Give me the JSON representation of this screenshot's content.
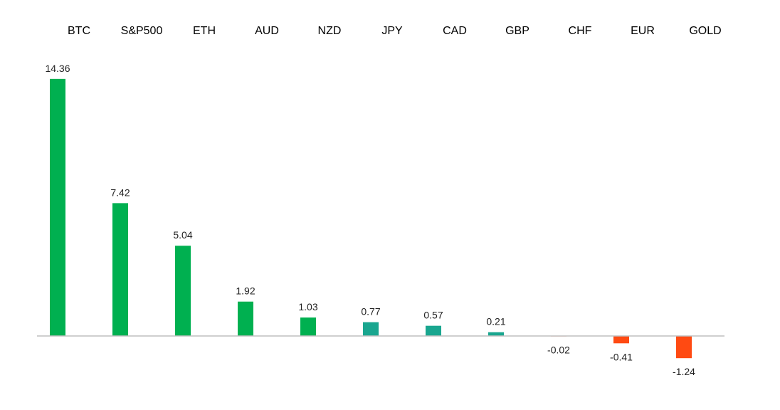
{
  "chart_data": {
    "type": "bar",
    "title": "",
    "xlabel": "",
    "ylabel": "",
    "categories": [
      "BTC",
      "S&P500",
      "ETH",
      "AUD",
      "NZD",
      "JPY",
      "CAD",
      "GBP",
      "CHF",
      "EUR",
      "GOLD"
    ],
    "values": [
      14.36,
      7.42,
      5.04,
      1.92,
      1.03,
      0.77,
      0.57,
      0.21,
      -0.02,
      -0.41,
      -1.24
    ],
    "value_labels": [
      "14.36",
      "7.42",
      "5.04",
      "1.92",
      "1.03",
      "0.77",
      "0.57",
      "0.21",
      "-0.02",
      "-0.41",
      "-1.24"
    ],
    "ylim": [
      -3.5,
      16
    ],
    "grid": false,
    "legend": "none",
    "category_label_position": "top",
    "colors": {
      "positive": "#00b050",
      "positive_small": "#19a68f",
      "negative": "#ff4a12",
      "axis": "#bfbfbf"
    }
  }
}
